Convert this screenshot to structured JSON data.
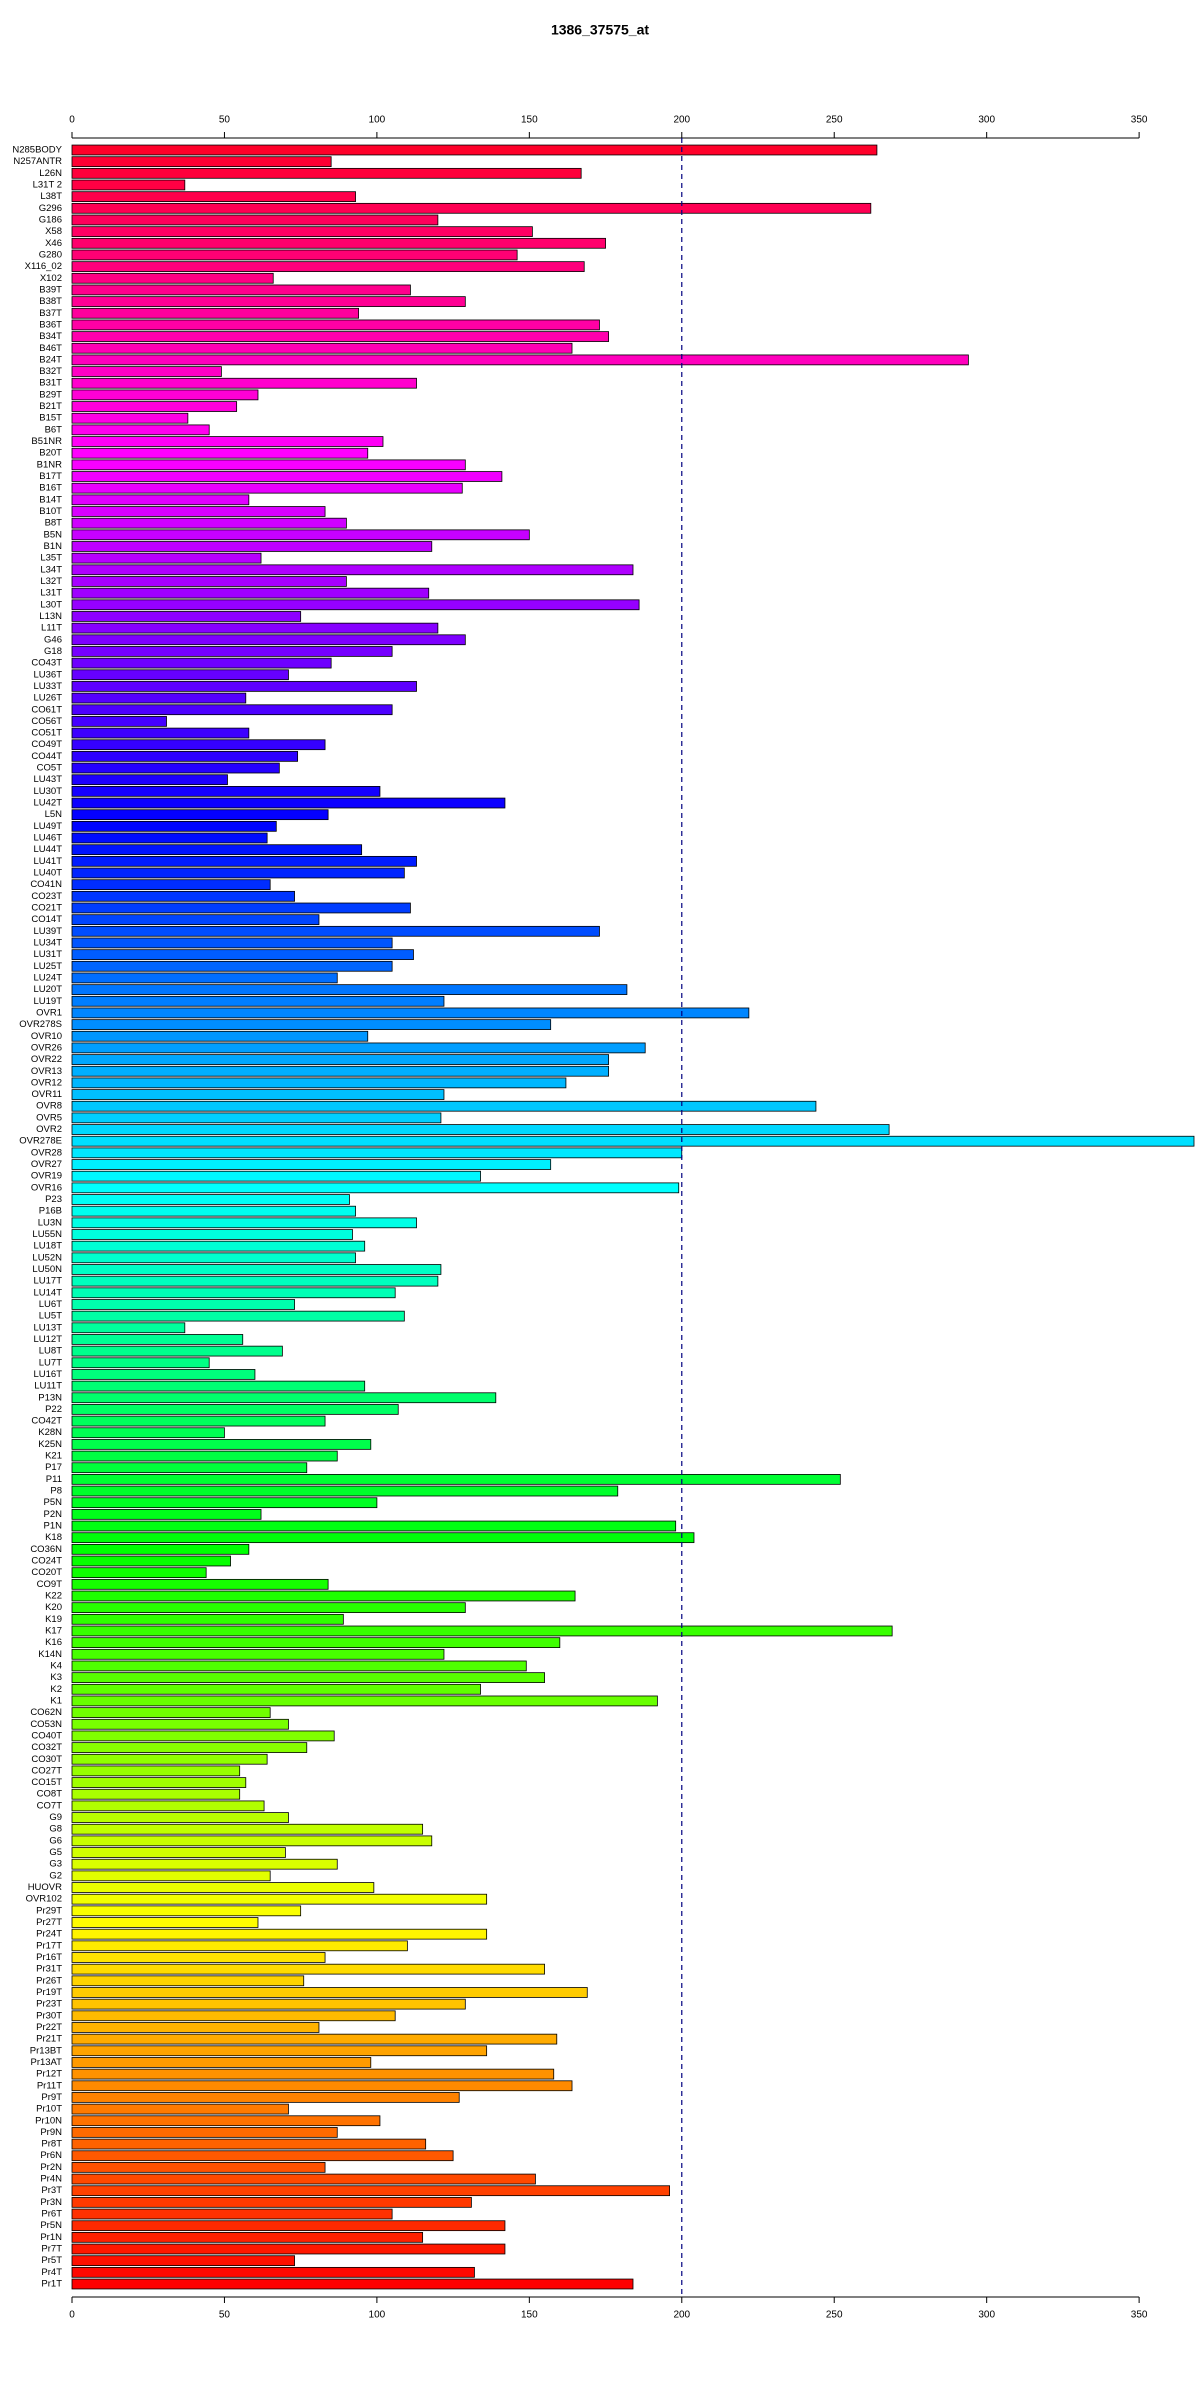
{
  "chart_data": {
    "type": "barh",
    "title": "1386_37575_at",
    "categories": [
      "N285BODY",
      "N257ANTR",
      "L26N",
      "L31T 2",
      "L38T",
      "G296",
      "G186",
      "X58",
      "X46",
      "G280",
      "X116_02",
      "X102",
      "B39T",
      "B38T",
      "B37T",
      "B36T",
      "B34T",
      "B46T",
      "B24T",
      "B32T",
      "B31T",
      "B29T",
      "B21T",
      "B15T",
      "B6T",
      "B51NR",
      "B20T",
      "B1NR",
      "B17T",
      "B16T",
      "B14T",
      "B10T",
      "B8T",
      "B5N",
      "B1N",
      "L35T",
      "L34T",
      "L32T",
      "L31T",
      "L30T",
      "L13N",
      "L11T",
      "G46",
      "G18",
      "CO43T",
      "LU36T",
      "LU33T",
      "LU26T",
      "CO61T",
      "CO56T",
      "CO51T",
      "CO49T",
      "CO44T",
      "CO5T",
      "LU43T",
      "LU30T",
      "LU42T",
      "L5N",
      "LU49T",
      "LU46T",
      "LU44T",
      "LU41T",
      "LU40T",
      "CO41N",
      "CO23T",
      "CO21T",
      "CO14T",
      "LU39T",
      "LU34T",
      "LU31T",
      "LU25T",
      "LU24T",
      "LU20T",
      "LU19T",
      "OVR1",
      "OVR278S",
      "OVR10",
      "OVR26",
      "OVR22",
      "OVR13",
      "OVR12",
      "OVR11",
      "OVR8",
      "OVR5",
      "OVR2",
      "OVR278E",
      "OVR28",
      "OVR27",
      "OVR19",
      "OVR16",
      "P23",
      "P16B",
      "LU3N",
      "LU55N",
      "LU18T",
      "LU52N",
      "LU50N",
      "LU17T",
      "LU14T",
      "LU6T",
      "LU5T",
      "LU13T",
      "LU12T",
      "LU8T",
      "LU7T",
      "LU16T",
      "LU11T",
      "P13N",
      "P22",
      "CO42T",
      "K28N",
      "K25N",
      "K21",
      "P17",
      "P11",
      "P8",
      "P5N",
      "P2N",
      "P1N",
      "K18",
      "CO36N",
      "CO24T",
      "CO20T",
      "CO9T",
      "K22",
      "K20",
      "K19",
      "K17",
      "K16",
      "K14N",
      "K4",
      "K3",
      "K2",
      "K1",
      "CO62N",
      "CO53N",
      "CO40T",
      "CO32T",
      "CO30T",
      "CO27T",
      "CO15T",
      "CO8T",
      "CO7T",
      "G9",
      "G8",
      "G6",
      "G5",
      "G3",
      "G2",
      "HUOVR",
      "OVR102",
      "Pr29T",
      "Pr27T",
      "Pr24T",
      "Pr17T",
      "Pr16T",
      "Pr31T",
      "Pr26T",
      "Pr19T",
      "Pr23T",
      "Pr30T",
      "Pr22T",
      "Pr21T",
      "Pr13BT",
      "Pr13AT",
      "Pr12T",
      "Pr11T",
      "Pr9T",
      "Pr10T",
      "Pr10N",
      "Pr9N",
      "Pr8T",
      "Pr6N",
      "Pr2N",
      "Pr4N",
      "Pr3T",
      "Pr3N",
      "Pr6T",
      "Pr5N",
      "Pr1N",
      "Pr7T",
      "Pr5T",
      "Pr4T",
      "Pr1T"
    ],
    "values": [
      264,
      85,
      167,
      37,
      93,
      262,
      120,
      151,
      175,
      146,
      168,
      66,
      111,
      129,
      94,
      173,
      176,
      164,
      294,
      49,
      113,
      61,
      54,
      38,
      45,
      102,
      97,
      129,
      141,
      128,
      58,
      83,
      90,
      150,
      118,
      62,
      184,
      90,
      117,
      186,
      75,
      120,
      129,
      105,
      85,
      71,
      113,
      57,
      105,
      31,
      58,
      83,
      74,
      68,
      51,
      101,
      142,
      84,
      67,
      64,
      95,
      113,
      109,
      65,
      73,
      111,
      81,
      173,
      105,
      112,
      105,
      87,
      182,
      122,
      222,
      157,
      97,
      188,
      176,
      176,
      162,
      122,
      244,
      121,
      268,
      368,
      200,
      157,
      134,
      199,
      91,
      93,
      113,
      92,
      96,
      93,
      121,
      120,
      106,
      73,
      109,
      37,
      56,
      69,
      45,
      60,
      96,
      139,
      107,
      83,
      50,
      98,
      87,
      77,
      252,
      179,
      100,
      62,
      198,
      204,
      58,
      52,
      44,
      84,
      165,
      129,
      89,
      269,
      160,
      122,
      149,
      155,
      134,
      192,
      65,
      71,
      86,
      77,
      64,
      55,
      57,
      55,
      63,
      71,
      115,
      118,
      70,
      87,
      65,
      99,
      136,
      75,
      61,
      136,
      110,
      83,
      155,
      76,
      169,
      129,
      106,
      81,
      159,
      136,
      98,
      158,
      164,
      127,
      71,
      101,
      87,
      116,
      125,
      83,
      152,
      196,
      131,
      105,
      142,
      115,
      142,
      73,
      132,
      184
    ],
    "palette": "rainbow",
    "xlim": [
      0,
      368
    ],
    "xticks": [
      0,
      50,
      100,
      150,
      200,
      250,
      300,
      350
    ],
    "reference_line": 200,
    "reference_color": "#000080"
  }
}
